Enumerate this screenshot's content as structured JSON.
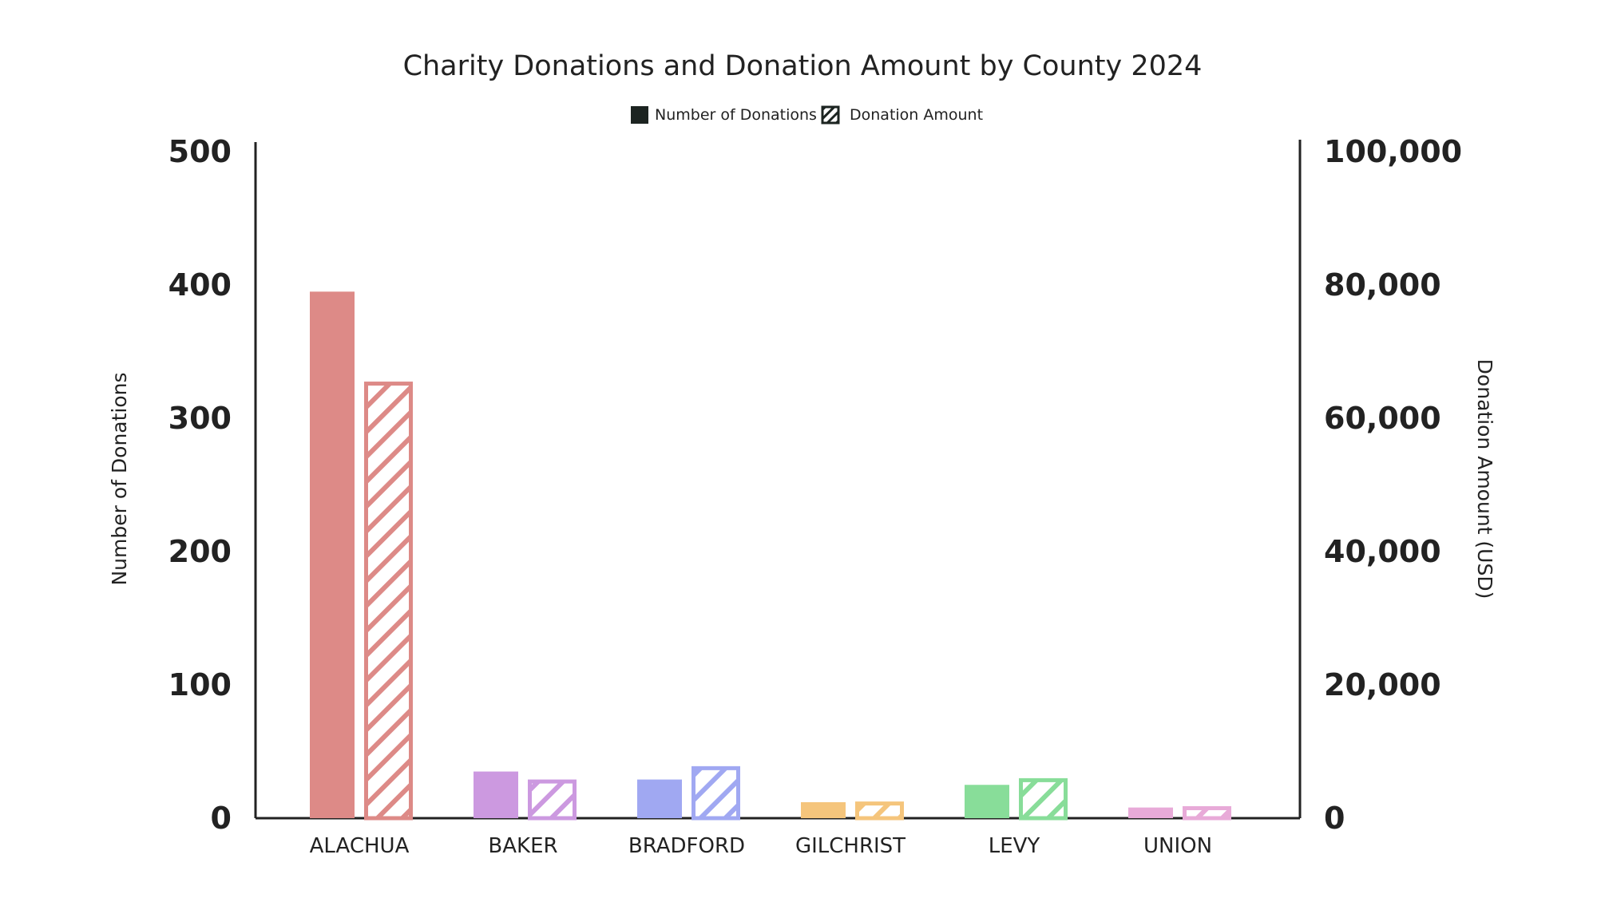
{
  "chart_data": {
    "type": "bar",
    "title": "Charity Donations and Donation Amount by County 2024",
    "categories": [
      "ALACHUA",
      "BAKER",
      "BRADFORD",
      "GILCHRIST",
      "LEVY",
      "UNION"
    ],
    "category_colors": [
      "#dd8a87",
      "#cc99e0",
      "#a0a8f2",
      "#f5c57c",
      "#88dd99",
      "#e8aad8"
    ],
    "series": [
      {
        "name": "Number of Donations",
        "axis": "left",
        "style": "solid",
        "values": [
          395,
          35,
          29,
          12,
          25,
          8
        ]
      },
      {
        "name": "Donation Amount",
        "axis": "right",
        "style": "hatched",
        "values": [
          65500,
          5800,
          7800,
          2500,
          6000,
          1800
        ]
      }
    ],
    "ylabel": "Number of Donations",
    "ylabel_right": "Donation Amount (USD)",
    "ylim": [
      0,
      500
    ],
    "ylim_right": [
      0,
      100000
    ],
    "yticks": [
      0,
      100,
      200,
      300,
      400,
      500
    ],
    "yticks_right": [
      0,
      20000,
      40000,
      60000,
      80000,
      100000
    ],
    "ytick_labels": [
      "0",
      "100",
      "200",
      "300",
      "400",
      "500"
    ],
    "ytick_labels_right": [
      "0",
      "20,000",
      "40,000",
      "60,000",
      "80,000",
      "100,000"
    ],
    "legend": {
      "position": "top-center",
      "entries": [
        "Number of Donations",
        "Donation Amount"
      ],
      "swatch_color": "#1c2421"
    },
    "grid": false,
    "axis_color": "#222222"
  }
}
